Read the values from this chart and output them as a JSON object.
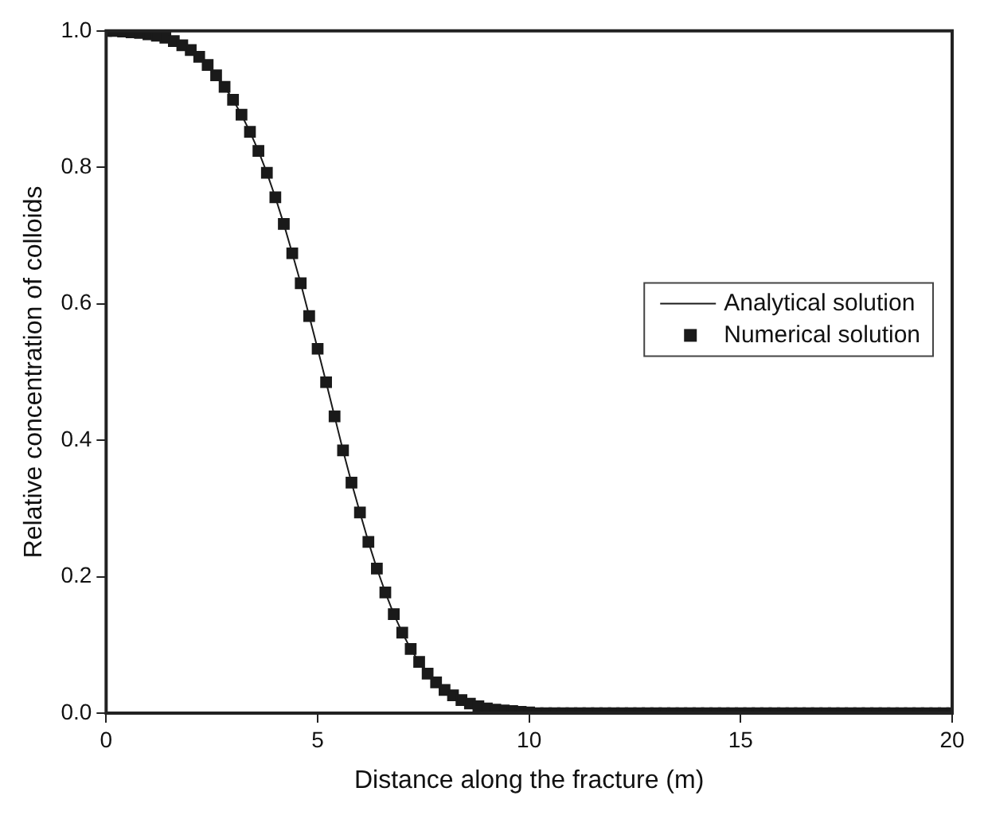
{
  "chart_data": {
    "type": "line",
    "xlabel": "Distance along the fracture (m)",
    "ylabel": "Relative concentration of colloids",
    "x": [
      0,
      0.2,
      0.4,
      0.6,
      0.8,
      1.0,
      1.2,
      1.4,
      1.6,
      1.8,
      2.0,
      2.2,
      2.4,
      2.6,
      2.8,
      3.0,
      3.2,
      3.4,
      3.6,
      3.8,
      4.0,
      4.2,
      4.4,
      4.6,
      4.8,
      5.0,
      5.2,
      5.4,
      5.6,
      5.8,
      6.0,
      6.2,
      6.4,
      6.6,
      6.8,
      7.0,
      7.2,
      7.4,
      7.6,
      7.8,
      8.0,
      8.2,
      8.4,
      8.6,
      8.8,
      9.0,
      9.2,
      9.4,
      9.6,
      9.8,
      10.0,
      10.2,
      10.4,
      10.6,
      10.8,
      11.0,
      11.2,
      11.4,
      11.6,
      11.8,
      12.0,
      12.2,
      12.4,
      12.6,
      12.8,
      13.0,
      13.2,
      13.4,
      13.6,
      13.8,
      14.0,
      14.2,
      14.4,
      14.6,
      14.8,
      15.0,
      15.2,
      15.4,
      15.6,
      15.8,
      16.0,
      16.2,
      16.4,
      16.6,
      16.8,
      17.0,
      17.2,
      17.4,
      17.6,
      17.8,
      18.0,
      18.2,
      18.4,
      18.6,
      18.8,
      19.0,
      19.2,
      19.4,
      19.6,
      19.8,
      20.0
    ],
    "series": [
      {
        "name": "Analytical solution",
        "color": "#1a1a1a",
        "marker": "none",
        "line_style": "solid",
        "values": [
          1.0,
          1.0,
          0.999,
          0.998,
          0.997,
          0.995,
          0.993,
          0.99,
          0.985,
          0.979,
          0.972,
          0.962,
          0.95,
          0.935,
          0.918,
          0.899,
          0.877,
          0.852,
          0.824,
          0.792,
          0.756,
          0.717,
          0.674,
          0.63,
          0.582,
          0.534,
          0.485,
          0.435,
          0.385,
          0.338,
          0.294,
          0.251,
          0.212,
          0.177,
          0.145,
          0.118,
          0.094,
          0.075,
          0.058,
          0.045,
          0.034,
          0.026,
          0.019,
          0.014,
          0.01,
          0.007,
          0.005,
          0.004,
          0.003,
          0.002,
          0.001,
          0,
          0,
          0,
          0,
          0,
          0,
          0,
          0,
          0,
          0,
          0,
          0,
          0,
          0,
          0,
          0,
          0,
          0,
          0,
          0,
          0,
          0,
          0,
          0,
          0,
          0,
          0,
          0,
          0,
          0,
          0,
          0,
          0,
          0,
          0,
          0,
          0,
          0,
          0,
          0,
          0,
          0,
          0,
          0,
          0,
          0,
          0,
          0,
          0,
          0
        ]
      },
      {
        "name": "Numerical solution",
        "type": "scatter",
        "color": "#1a1a1a",
        "marker": "square",
        "values": [
          1.0,
          1.0,
          0.999,
          0.998,
          0.997,
          0.995,
          0.993,
          0.99,
          0.985,
          0.979,
          0.972,
          0.962,
          0.95,
          0.935,
          0.918,
          0.899,
          0.877,
          0.852,
          0.824,
          0.792,
          0.756,
          0.717,
          0.674,
          0.63,
          0.582,
          0.534,
          0.485,
          0.435,
          0.385,
          0.338,
          0.294,
          0.251,
          0.212,
          0.177,
          0.145,
          0.118,
          0.094,
          0.075,
          0.058,
          0.045,
          0.034,
          0.026,
          0.019,
          0.014,
          0.01,
          0.007,
          0.005,
          0.004,
          0.003,
          0.002,
          0.001,
          0,
          0,
          0,
          0,
          0,
          0,
          0,
          0,
          0,
          0,
          0,
          0,
          0,
          0,
          0,
          0,
          0,
          0,
          0,
          0,
          0,
          0,
          0,
          0,
          0,
          0,
          0,
          0,
          0,
          0,
          0,
          0,
          0,
          0,
          0,
          0,
          0,
          0,
          0,
          0,
          0,
          0,
          0,
          0,
          0,
          0,
          0,
          0,
          0,
          0
        ]
      }
    ],
    "xlim": [
      0,
      20
    ],
    "xticks": [
      0,
      5,
      10,
      15,
      20
    ],
    "ylim": [
      0,
      1
    ],
    "yticks": [
      {
        "value": 0,
        "label": "0.0"
      },
      {
        "value": 0.2,
        "label": "0.2"
      },
      {
        "value": 0.4,
        "label": "0.4"
      },
      {
        "value": 0.6,
        "label": "0.6"
      },
      {
        "value": 0.8,
        "label": "0.8"
      },
      {
        "value": 1,
        "label": "1.0"
      }
    ],
    "grid": false,
    "legend": "right"
  }
}
